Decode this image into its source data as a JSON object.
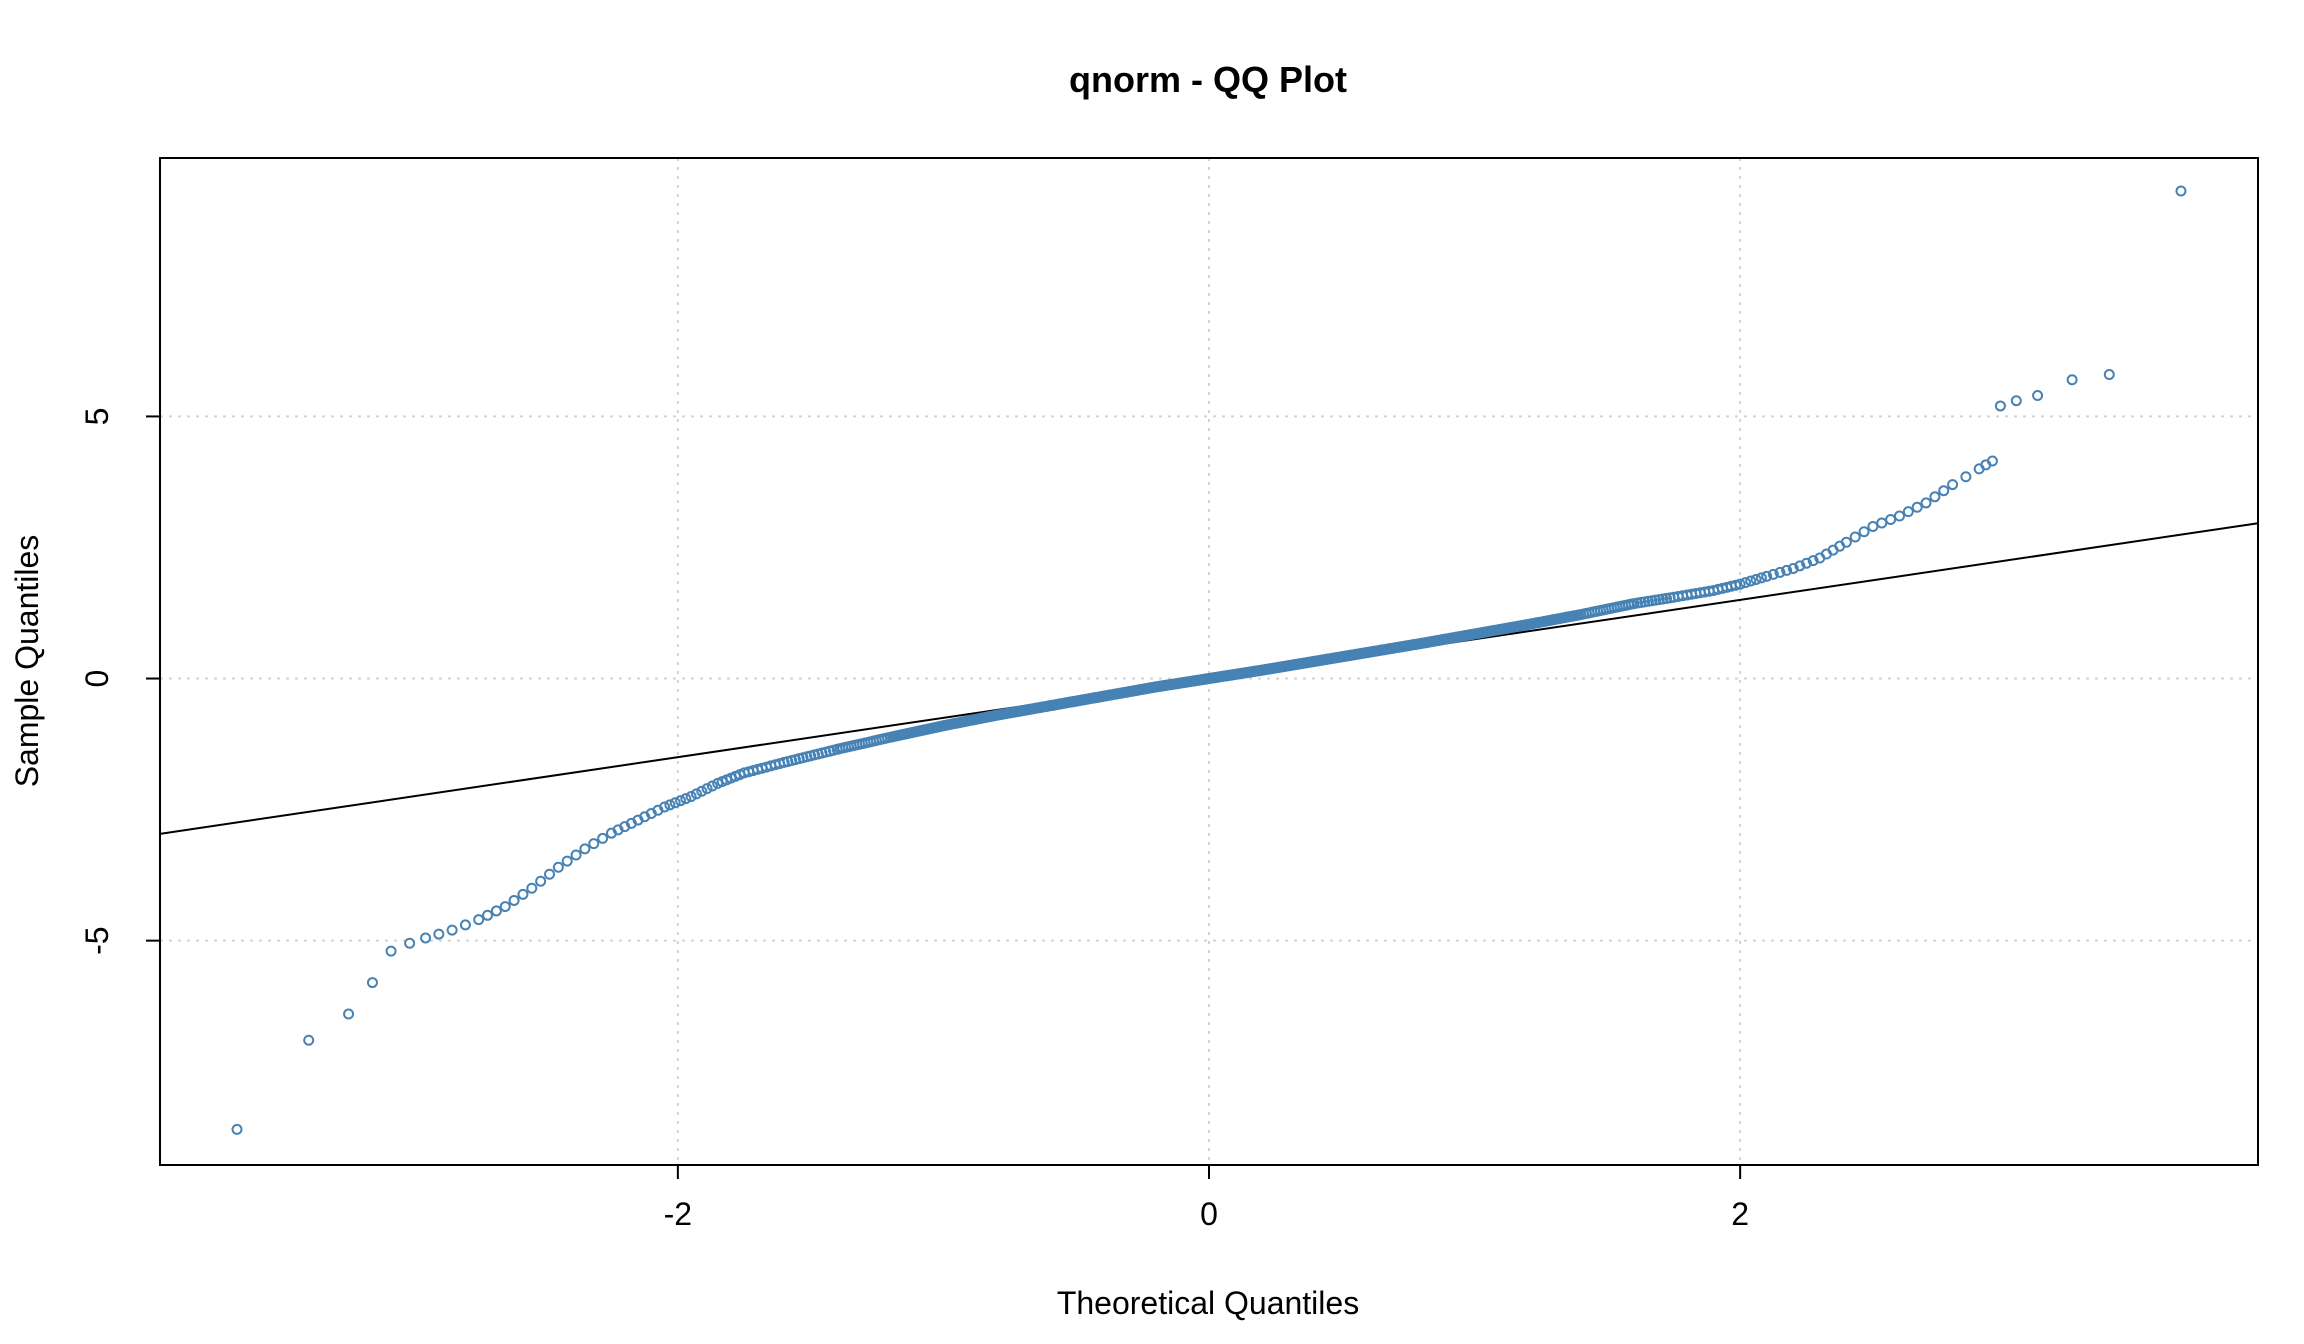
{
  "chart_data": {
    "type": "scatter",
    "title": "qnorm - QQ Plot",
    "xlabel": "Theoretical Quantiles",
    "ylabel": "Sample Quantiles",
    "xlim": [
      -3.95,
      3.95
    ],
    "ylim": [
      -9.28,
      9.93
    ],
    "x_ticks": [
      -2,
      0,
      2
    ],
    "y_ticks": [
      -5,
      0,
      5
    ],
    "x_tick_labels": [
      "-2",
      "0",
      "2"
    ],
    "y_tick_labels": [
      "-5",
      "0",
      "5"
    ],
    "grid": true,
    "legend": "none",
    "colors": {
      "points": "#4682b4",
      "reference_line": "#000000",
      "grid": "#d3d3d3"
    },
    "reference_line": {
      "intercept": 0.0,
      "slope": 0.75
    },
    "outlier_points": [
      {
        "x": -3.66,
        "y": -8.6
      },
      {
        "x": -3.39,
        "y": -6.9
      },
      {
        "x": -3.24,
        "y": -6.4
      },
      {
        "x": -3.15,
        "y": -5.8
      },
      {
        "x": -3.08,
        "y": -5.2
      },
      {
        "x": -3.01,
        "y": -5.05
      },
      {
        "x": 2.98,
        "y": 5.2
      },
      {
        "x": 3.04,
        "y": 5.3
      },
      {
        "x": 3.12,
        "y": 5.4
      },
      {
        "x": 3.25,
        "y": 5.7
      },
      {
        "x": 3.39,
        "y": 5.8
      },
      {
        "x": 3.66,
        "y": 9.3
      }
    ],
    "series": [
      {
        "points": [
          {
            "x": -2.95,
            "y": -4.95
          },
          {
            "x": -2.85,
            "y": -4.8
          },
          {
            "x": -2.75,
            "y": -4.6
          },
          {
            "x": -2.65,
            "y": -4.35
          },
          {
            "x": -2.55,
            "y": -4.0
          },
          {
            "x": -2.45,
            "y": -3.6
          },
          {
            "x": -2.35,
            "y": -3.25
          },
          {
            "x": -2.25,
            "y": -2.95
          },
          {
            "x": -2.15,
            "y": -2.7
          },
          {
            "x": -2.05,
            "y": -2.45
          },
          {
            "x": -1.95,
            "y": -2.25
          },
          {
            "x": -1.85,
            "y": -2.0
          },
          {
            "x": -1.75,
            "y": -1.8
          },
          {
            "x": -1.6,
            "y": -1.6
          },
          {
            "x": -1.4,
            "y": -1.35
          },
          {
            "x": -1.2,
            "y": -1.12
          },
          {
            "x": -1.0,
            "y": -0.9
          },
          {
            "x": -0.8,
            "y": -0.7
          },
          {
            "x": -0.6,
            "y": -0.52
          },
          {
            "x": -0.4,
            "y": -0.34
          },
          {
            "x": -0.2,
            "y": -0.16
          },
          {
            "x": 0.0,
            "y": 0.0
          },
          {
            "x": 0.2,
            "y": 0.16
          },
          {
            "x": 0.4,
            "y": 0.33
          },
          {
            "x": 0.6,
            "y": 0.5
          },
          {
            "x": 0.8,
            "y": 0.67
          },
          {
            "x": 1.0,
            "y": 0.85
          },
          {
            "x": 1.2,
            "y": 1.03
          },
          {
            "x": 1.4,
            "y": 1.22
          },
          {
            "x": 1.6,
            "y": 1.43
          },
          {
            "x": 1.75,
            "y": 1.55
          },
          {
            "x": 1.9,
            "y": 1.68
          },
          {
            "x": 2.0,
            "y": 1.8
          },
          {
            "x": 2.1,
            "y": 1.95
          },
          {
            "x": 2.2,
            "y": 2.1
          },
          {
            "x": 2.3,
            "y": 2.3
          },
          {
            "x": 2.4,
            "y": 2.6
          },
          {
            "x": 2.5,
            "y": 2.9
          },
          {
            "x": 2.6,
            "y": 3.1
          },
          {
            "x": 2.7,
            "y": 3.35
          },
          {
            "x": 2.8,
            "y": 3.7
          },
          {
            "x": 2.9,
            "y": 4.0
          },
          {
            "x": 2.95,
            "y": 4.15
          }
        ]
      }
    ]
  }
}
